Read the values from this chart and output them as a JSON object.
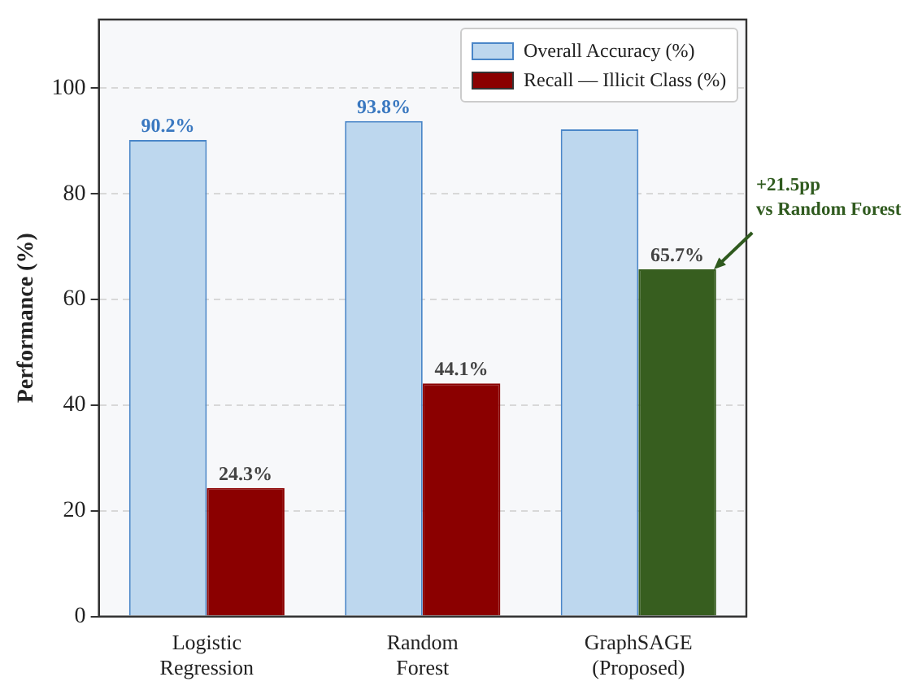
{
  "chart_data": {
    "type": "bar",
    "ylabel": "Performance (%)",
    "categories": [
      "Logistic\nRegression",
      "Random\nForest",
      "GraphSAGE\n(Proposed)"
    ],
    "series": [
      {
        "name": "Overall Accuracy (%)",
        "color": "#bdd7ee",
        "values": [
          90.2,
          93.8,
          92.2
        ],
        "value_labels": [
          "90.2%",
          "93.8%",
          null
        ]
      },
      {
        "name": "Recall — Illicit Class (%)",
        "color": "#8b0000",
        "colors": [
          "#8b0000",
          "#8b0000",
          "#375e1f"
        ],
        "values": [
          24.3,
          44.1,
          65.7
        ],
        "value_labels": [
          "24.3%",
          "44.1%",
          "65.7%"
        ]
      }
    ],
    "ylim": [
      0,
      113
    ],
    "yticks": [
      0,
      20,
      40,
      60,
      80,
      100
    ],
    "grid": "y",
    "legend": "top right",
    "annotations": [
      "+21.5pp\nvs Random Forest"
    ]
  }
}
